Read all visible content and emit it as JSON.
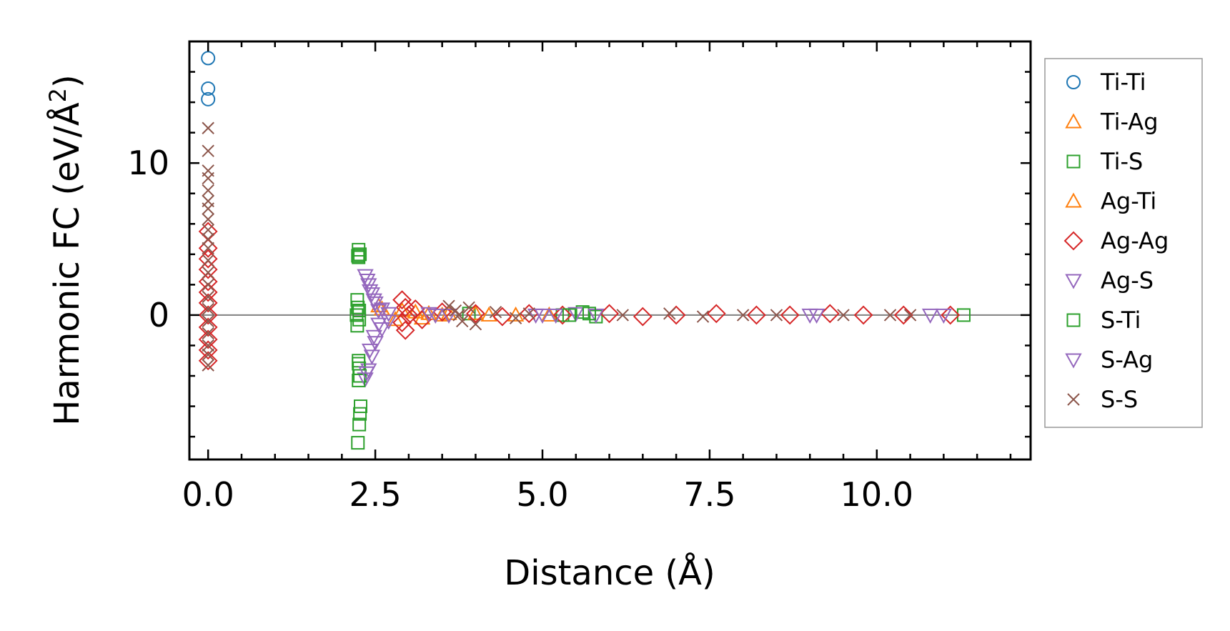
{
  "chart_data": {
    "type": "scatter",
    "xlabel": "Distance (Å)",
    "ylabel_main": "Harmonic FC (eV/Å",
    "ylabel_sup": "2",
    "ylabel_close": ")",
    "xlim": [
      -0.28,
      12.3
    ],
    "ylim": [
      -9.5,
      18.0
    ],
    "x_ticks": [
      0.0,
      2.5,
      5.0,
      7.5,
      10.0
    ],
    "x_tick_labels": [
      "0.0",
      "2.5",
      "5.0",
      "7.5",
      "10.0"
    ],
    "y_ticks": [
      0,
      10
    ],
    "y_tick_labels": [
      "0",
      "10"
    ],
    "zero_line": true,
    "grid": false,
    "legend_position": "outside-right",
    "series": [
      {
        "name": "Ti-Ti",
        "marker": "circle",
        "color": "#1f77b4",
        "points": [
          [
            0.0,
            16.9
          ],
          [
            0.0,
            14.9
          ],
          [
            0.0,
            14.2
          ]
        ]
      },
      {
        "name": "Ti-Ag",
        "marker": "triangle-up",
        "color": "#ff7f0e",
        "points": [
          [
            2.6,
            0.4
          ],
          [
            2.8,
            -0.3
          ],
          [
            3.1,
            0.2
          ],
          [
            3.3,
            0.1
          ],
          [
            3.6,
            0.1
          ],
          [
            4.2,
            0.0
          ],
          [
            5.1,
            0.0
          ]
        ]
      },
      {
        "name": "Ti-S",
        "marker": "square",
        "color": "#2ca02c",
        "points": [
          [
            2.25,
            4.3
          ],
          [
            2.27,
            4.0
          ],
          [
            2.25,
            3.8
          ],
          [
            2.23,
            1.0
          ],
          [
            2.24,
            0.5
          ],
          [
            2.22,
            0.0
          ],
          [
            2.26,
            -0.3
          ],
          [
            2.23,
            -0.7
          ],
          [
            2.25,
            -3.0
          ],
          [
            2.26,
            -3.5
          ],
          [
            2.27,
            -4.0
          ],
          [
            2.28,
            -6.0
          ],
          [
            2.27,
            -6.5
          ],
          [
            2.26,
            -7.2
          ],
          [
            2.24,
            -8.4
          ],
          [
            3.9,
            0.1
          ],
          [
            5.3,
            0.0
          ],
          [
            5.6,
            0.2
          ],
          [
            5.8,
            -0.1
          ],
          [
            11.3,
            0.0
          ]
        ]
      },
      {
        "name": "Ag-Ti",
        "marker": "triangle-up",
        "color": "#ff7f0e",
        "points": [
          [
            2.55,
            0.6
          ],
          [
            2.9,
            0.3
          ],
          [
            3.2,
            -0.2
          ],
          [
            3.5,
            0.0
          ],
          [
            4.0,
            0.1
          ],
          [
            4.6,
            0.0
          ]
        ]
      },
      {
        "name": "Ag-Ag",
        "marker": "diamond",
        "color": "#d62728",
        "points": [
          [
            0.0,
            5.5
          ],
          [
            0.0,
            4.4
          ],
          [
            0.0,
            3.7
          ],
          [
            0.0,
            3.0
          ],
          [
            0.0,
            2.2
          ],
          [
            0.0,
            1.5
          ],
          [
            0.0,
            0.8
          ],
          [
            0.0,
            0.0
          ],
          [
            0.0,
            -0.8
          ],
          [
            0.0,
            -1.6
          ],
          [
            0.0,
            -2.3
          ],
          [
            0.0,
            -3.0
          ],
          [
            2.9,
            1.0
          ],
          [
            2.95,
            0.5
          ],
          [
            3.0,
            0.0
          ],
          [
            2.9,
            -0.5
          ],
          [
            2.95,
            -1.0
          ],
          [
            3.1,
            0.4
          ],
          [
            3.2,
            -0.3
          ],
          [
            3.5,
            0.2
          ],
          [
            4.0,
            0.1
          ],
          [
            4.4,
            -0.1
          ],
          [
            4.8,
            0.1
          ],
          [
            5.3,
            0.0
          ],
          [
            6.0,
            0.1
          ],
          [
            6.5,
            -0.1
          ],
          [
            7.0,
            0.0
          ],
          [
            7.6,
            0.1
          ],
          [
            8.2,
            0.0
          ],
          [
            8.7,
            0.0
          ],
          [
            9.3,
            0.1
          ],
          [
            9.8,
            0.0
          ],
          [
            10.4,
            0.0
          ],
          [
            11.1,
            0.0
          ]
        ]
      },
      {
        "name": "Ag-S",
        "marker": "triangle-down",
        "color": "#9467bd",
        "points": [
          [
            2.35,
            2.6
          ],
          [
            2.4,
            2.0
          ],
          [
            2.45,
            1.4
          ],
          [
            2.5,
            0.8
          ],
          [
            2.6,
            0.4
          ],
          [
            2.7,
            0.1
          ],
          [
            2.7,
            -0.4
          ],
          [
            2.6,
            -0.9
          ],
          [
            2.5,
            -1.8
          ],
          [
            2.45,
            -2.7
          ],
          [
            2.4,
            -3.6
          ],
          [
            2.35,
            -4.2
          ],
          [
            3.3,
            0.1
          ],
          [
            3.6,
            0.0
          ],
          [
            5.2,
            0.0
          ],
          [
            5.5,
            0.1
          ],
          [
            5.8,
            0.0
          ],
          [
            9.1,
            0.0
          ],
          [
            10.8,
            0.0
          ],
          [
            11.0,
            0.0
          ]
        ]
      },
      {
        "name": "S-Ti",
        "marker": "square",
        "color": "#2ca02c",
        "points": [
          [
            2.24,
            3.9
          ],
          [
            2.26,
            0.3
          ],
          [
            2.25,
            -3.2
          ],
          [
            2.25,
            -4.3
          ],
          [
            5.4,
            0.0
          ],
          [
            5.7,
            0.1
          ]
        ]
      },
      {
        "name": "S-Ag",
        "marker": "triangle-down",
        "color": "#9467bd",
        "points": [
          [
            2.38,
            2.3
          ],
          [
            2.42,
            1.6
          ],
          [
            2.48,
            1.0
          ],
          [
            2.55,
            0.3
          ],
          [
            2.55,
            -0.6
          ],
          [
            2.48,
            -1.4
          ],
          [
            2.42,
            -2.3
          ],
          [
            2.37,
            -3.8
          ],
          [
            3.4,
            0.0
          ],
          [
            4.9,
            0.0
          ],
          [
            5.0,
            0.0
          ],
          [
            9.0,
            0.0
          ]
        ]
      },
      {
        "name": "S-S",
        "marker": "x",
        "color": "#8c564b",
        "points": [
          [
            0.0,
            12.3
          ],
          [
            0.0,
            10.8
          ],
          [
            0.0,
            9.5
          ],
          [
            0.0,
            9.0
          ],
          [
            0.0,
            8.2
          ],
          [
            0.0,
            7.5
          ],
          [
            0.0,
            7.0
          ],
          [
            0.0,
            6.3
          ],
          [
            0.0,
            5.6
          ],
          [
            0.0,
            5.0
          ],
          [
            0.0,
            4.4
          ],
          [
            0.0,
            3.6
          ],
          [
            0.0,
            2.8
          ],
          [
            0.0,
            2.0
          ],
          [
            0.0,
            1.2
          ],
          [
            0.0,
            0.4
          ],
          [
            0.0,
            -0.4
          ],
          [
            0.0,
            -1.2
          ],
          [
            0.0,
            -2.0
          ],
          [
            0.0,
            -2.6
          ],
          [
            0.0,
            -3.3
          ],
          [
            3.6,
            0.6
          ],
          [
            3.7,
            0.3
          ],
          [
            3.8,
            -0.4
          ],
          [
            3.9,
            0.5
          ],
          [
            4.0,
            -0.6
          ],
          [
            3.75,
            0.0
          ],
          [
            4.3,
            0.2
          ],
          [
            4.6,
            -0.2
          ],
          [
            4.8,
            0.1
          ],
          [
            6.2,
            0.0
          ],
          [
            6.9,
            0.1
          ],
          [
            7.4,
            -0.1
          ],
          [
            8.0,
            0.0
          ],
          [
            8.5,
            0.0
          ],
          [
            9.5,
            0.0
          ],
          [
            10.2,
            0.0
          ],
          [
            10.5,
            0.0
          ]
        ]
      }
    ]
  }
}
